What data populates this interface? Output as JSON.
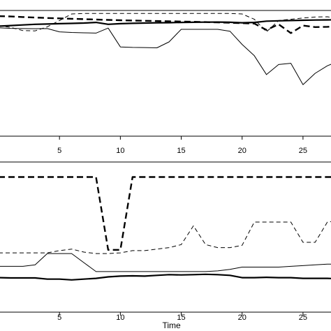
{
  "chart_data": [
    {
      "type": "line",
      "panel": "top",
      "xlabel": "",
      "ylabel": "",
      "xlim": [
        0,
        28
      ],
      "ylim": [
        0,
        1
      ],
      "x_ticks": [
        5,
        10,
        15,
        20,
        25
      ],
      "x_tick_labels": [
        "5",
        "10",
        "15",
        "20",
        "25"
      ],
      "grid": false,
      "x": [
        0,
        1,
        2,
        3,
        4,
        5,
        6,
        7,
        8,
        9,
        10,
        11,
        12,
        13,
        14,
        15,
        16,
        17,
        18,
        19,
        20,
        21,
        22,
        23,
        24,
        25,
        26,
        27,
        28
      ],
      "series": [
        {
          "style": "thick-dashed",
          "values": [
            0.955,
            0.952,
            0.948,
            0.944,
            0.94,
            0.937,
            0.934,
            0.931,
            0.928,
            0.925,
            0.922,
            0.92,
            0.918,
            0.916,
            0.914,
            0.912,
            0.91,
            0.908,
            0.905,
            0.902,
            0.899,
            0.896,
            0.845,
            0.89,
            0.82,
            0.88,
            0.868,
            0.87,
            0.875
          ]
        },
        {
          "style": "thin-dashed",
          "values": [
            0.88,
            0.865,
            0.84,
            0.838,
            0.87,
            0.92,
            0.972,
            0.976,
            0.976,
            0.976,
            0.976,
            0.976,
            0.976,
            0.976,
            0.976,
            0.976,
            0.976,
            0.976,
            0.976,
            0.976,
            0.972,
            0.93,
            0.83,
            0.92,
            0.93,
            0.94,
            0.948,
            0.95,
            0.935
          ]
        },
        {
          "style": "thick-solid",
          "values": [
            0.875,
            0.88,
            0.885,
            0.89,
            0.892,
            0.895,
            0.897,
            0.9,
            0.905,
            0.89,
            0.895,
            0.898,
            0.9,
            0.902,
            0.903,
            0.905,
            0.906,
            0.907,
            0.908,
            0.906,
            0.902,
            0.905,
            0.915,
            0.918,
            0.92,
            0.922,
            0.924,
            0.925,
            0.926
          ]
        },
        {
          "style": "thin-solid",
          "values": [
            0.862,
            0.858,
            0.856,
            0.855,
            0.856,
            0.83,
            0.825,
            0.822,
            0.82,
            0.86,
            0.71,
            0.706,
            0.705,
            0.703,
            0.75,
            0.85,
            0.85,
            0.85,
            0.85,
            0.835,
            0.73,
            0.64,
            0.49,
            0.57,
            0.58,
            0.41,
            0.5,
            0.56,
            0.6
          ]
        }
      ]
    },
    {
      "type": "line",
      "panel": "bottom",
      "xlabel": "Time",
      "ylabel": "",
      "xlim": [
        0,
        28
      ],
      "ylim": [
        0,
        1
      ],
      "x_ticks": [
        5,
        10,
        15,
        20,
        25
      ],
      "x_tick_labels": [
        "5",
        "10",
        "15",
        "20",
        "25"
      ],
      "grid": false,
      "x": [
        0,
        1,
        2,
        3,
        4,
        5,
        6,
        7,
        8,
        9,
        10,
        11,
        12,
        13,
        14,
        15,
        16,
        17,
        18,
        19,
        20,
        21,
        22,
        23,
        24,
        25,
        26,
        27,
        28
      ],
      "series": [
        {
          "style": "thick-dashed",
          "values": [
            0.9,
            0.9,
            0.9,
            0.9,
            0.9,
            0.9,
            0.9,
            0.9,
            0.9,
            0.415,
            0.415,
            0.9,
            0.9,
            0.9,
            0.9,
            0.9,
            0.9,
            0.9,
            0.9,
            0.9,
            0.9,
            0.9,
            0.9,
            0.9,
            0.9,
            0.9,
            0.9,
            0.9,
            0.9
          ]
        },
        {
          "style": "thin-dashed",
          "values": [
            0.395,
            0.395,
            0.395,
            0.395,
            0.395,
            0.41,
            0.42,
            0.4,
            0.39,
            0.39,
            0.395,
            0.41,
            0.41,
            0.42,
            0.43,
            0.45,
            0.575,
            0.45,
            0.43,
            0.43,
            0.445,
            0.6,
            0.6,
            0.6,
            0.6,
            0.465,
            0.465,
            0.6,
            0.61
          ]
        },
        {
          "style": "thin-solid",
          "values": [
            0.305,
            0.305,
            0.305,
            0.315,
            0.39,
            0.39,
            0.39,
            0.33,
            0.27,
            0.27,
            0.27,
            0.27,
            0.27,
            0.27,
            0.27,
            0.27,
            0.27,
            0.27,
            0.275,
            0.285,
            0.3,
            0.3,
            0.3,
            0.3,
            0.305,
            0.31,
            0.315,
            0.32,
            0.32
          ]
        },
        {
          "style": "thick-solid",
          "values": [
            0.23,
            0.228,
            0.228,
            0.228,
            0.22,
            0.22,
            0.215,
            0.22,
            0.225,
            0.235,
            0.24,
            0.242,
            0.24,
            0.245,
            0.25,
            0.248,
            0.25,
            0.252,
            0.25,
            0.245,
            0.23,
            0.23,
            0.232,
            0.23,
            0.23,
            0.225,
            0.225,
            0.225,
            0.222
          ]
        }
      ]
    }
  ]
}
